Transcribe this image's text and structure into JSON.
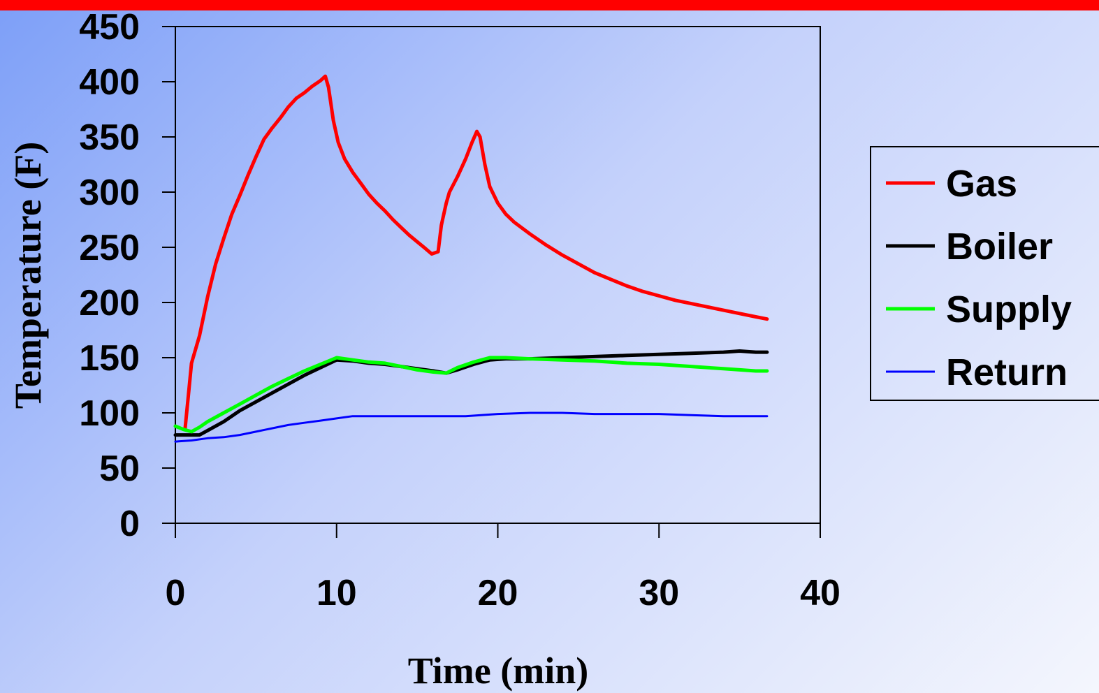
{
  "chart_data": {
    "type": "line",
    "xlabel": "Time (min)",
    "ylabel": "Temperature (F)",
    "xlim": [
      0,
      40
    ],
    "ylim": [
      0,
      450
    ],
    "x_ticks": [
      "0",
      "10",
      "20",
      "30",
      "40"
    ],
    "y_ticks": [
      "0",
      "50",
      "100",
      "150",
      "200",
      "250",
      "300",
      "350",
      "400",
      "450"
    ],
    "grid": false,
    "legend_position": "right",
    "series": [
      {
        "name": "Gas",
        "color": "#ff0000",
        "points": [
          [
            0.6,
            85
          ],
          [
            0.8,
            115
          ],
          [
            1.0,
            145
          ],
          [
            1.5,
            170
          ],
          [
            2.0,
            205
          ],
          [
            2.5,
            235
          ],
          [
            3.0,
            258
          ],
          [
            3.5,
            280
          ],
          [
            4.0,
            297
          ],
          [
            4.5,
            315
          ],
          [
            5.0,
            332
          ],
          [
            5.5,
            348
          ],
          [
            6.0,
            358
          ],
          [
            6.5,
            367
          ],
          [
            7.0,
            377
          ],
          [
            7.5,
            385
          ],
          [
            8.0,
            390
          ],
          [
            8.5,
            396
          ],
          [
            9.0,
            401
          ],
          [
            9.3,
            405
          ],
          [
            9.5,
            395
          ],
          [
            9.8,
            365
          ],
          [
            10.1,
            345
          ],
          [
            10.5,
            330
          ],
          [
            11.0,
            318
          ],
          [
            11.5,
            308
          ],
          [
            12.0,
            298
          ],
          [
            12.5,
            290
          ],
          [
            13.0,
            283
          ],
          [
            13.5,
            275
          ],
          [
            14.0,
            268
          ],
          [
            14.5,
            261
          ],
          [
            15.0,
            255
          ],
          [
            15.5,
            249
          ],
          [
            15.9,
            244
          ],
          [
            16.3,
            246
          ],
          [
            16.5,
            270
          ],
          [
            16.8,
            290
          ],
          [
            17.0,
            300
          ],
          [
            17.5,
            314
          ],
          [
            18.0,
            330
          ],
          [
            18.4,
            345
          ],
          [
            18.7,
            355
          ],
          [
            18.9,
            350
          ],
          [
            19.2,
            325
          ],
          [
            19.5,
            305
          ],
          [
            20.0,
            290
          ],
          [
            20.5,
            280
          ],
          [
            21.0,
            273
          ],
          [
            22.0,
            262
          ],
          [
            23.0,
            252
          ],
          [
            24.0,
            243
          ],
          [
            25.0,
            235
          ],
          [
            26.0,
            227
          ],
          [
            27.0,
            221
          ],
          [
            28.0,
            215
          ],
          [
            29.0,
            210
          ],
          [
            30.0,
            206
          ],
          [
            31.0,
            202
          ],
          [
            32.0,
            199
          ],
          [
            33.0,
            196
          ],
          [
            34.0,
            193
          ],
          [
            35.0,
            190
          ],
          [
            36.0,
            187
          ],
          [
            36.7,
            185
          ]
        ]
      },
      {
        "name": "Boiler",
        "color": "#000000",
        "points": [
          [
            0,
            80
          ],
          [
            1.0,
            80
          ],
          [
            1.5,
            80
          ],
          [
            2.0,
            84
          ],
          [
            3.0,
            92
          ],
          [
            4.0,
            102
          ],
          [
            5.0,
            110
          ],
          [
            6.0,
            118
          ],
          [
            7.0,
            126
          ],
          [
            8.0,
            134
          ],
          [
            9.0,
            141
          ],
          [
            10.0,
            148
          ],
          [
            11.0,
            147
          ],
          [
            12.0,
            145
          ],
          [
            13.0,
            144
          ],
          [
            14.0,
            142
          ],
          [
            15.0,
            140
          ],
          [
            16.0,
            138
          ],
          [
            16.8,
            136
          ],
          [
            17.5,
            139
          ],
          [
            18.5,
            144
          ],
          [
            19.5,
            148
          ],
          [
            20.5,
            149
          ],
          [
            22.0,
            149
          ],
          [
            24.0,
            150
          ],
          [
            26.0,
            151
          ],
          [
            28.0,
            152
          ],
          [
            30.0,
            153
          ],
          [
            32.0,
            154
          ],
          [
            34.0,
            155
          ],
          [
            35.0,
            156
          ],
          [
            36.0,
            155
          ],
          [
            36.7,
            155
          ]
        ]
      },
      {
        "name": "Supply",
        "color": "#00ff00",
        "points": [
          [
            0,
            88
          ],
          [
            0.5,
            85
          ],
          [
            1.0,
            83
          ],
          [
            1.5,
            87
          ],
          [
            2.0,
            92
          ],
          [
            3.0,
            100
          ],
          [
            4.0,
            108
          ],
          [
            5.0,
            116
          ],
          [
            6.0,
            124
          ],
          [
            7.0,
            131
          ],
          [
            8.0,
            138
          ],
          [
            9.0,
            144
          ],
          [
            10.0,
            150
          ],
          [
            11.0,
            148
          ],
          [
            12.0,
            146
          ],
          [
            13.0,
            145
          ],
          [
            14.0,
            142
          ],
          [
            15.0,
            139
          ],
          [
            16.0,
            137
          ],
          [
            16.8,
            136
          ],
          [
            17.5,
            141
          ],
          [
            18.5,
            146
          ],
          [
            19.5,
            150
          ],
          [
            20.5,
            150
          ],
          [
            22.0,
            149
          ],
          [
            24.0,
            148
          ],
          [
            26.0,
            147
          ],
          [
            28.0,
            145
          ],
          [
            30.0,
            144
          ],
          [
            32.0,
            142
          ],
          [
            34.0,
            140
          ],
          [
            36.0,
            138
          ],
          [
            36.7,
            138
          ]
        ]
      },
      {
        "name": "Return",
        "color": "#0000ff",
        "points": [
          [
            0,
            74
          ],
          [
            1,
            75
          ],
          [
            2,
            77
          ],
          [
            3,
            78
          ],
          [
            4,
            80
          ],
          [
            5,
            83
          ],
          [
            6,
            86
          ],
          [
            7,
            89
          ],
          [
            8,
            91
          ],
          [
            9,
            93
          ],
          [
            10,
            95
          ],
          [
            11,
            97
          ],
          [
            12,
            97
          ],
          [
            14,
            97
          ],
          [
            16,
            97
          ],
          [
            18,
            97
          ],
          [
            20,
            99
          ],
          [
            22,
            100
          ],
          [
            24,
            100
          ],
          [
            26,
            99
          ],
          [
            28,
            99
          ],
          [
            30,
            99
          ],
          [
            32,
            98
          ],
          [
            34,
            97
          ],
          [
            36,
            97
          ],
          [
            36.7,
            97
          ]
        ]
      }
    ]
  }
}
